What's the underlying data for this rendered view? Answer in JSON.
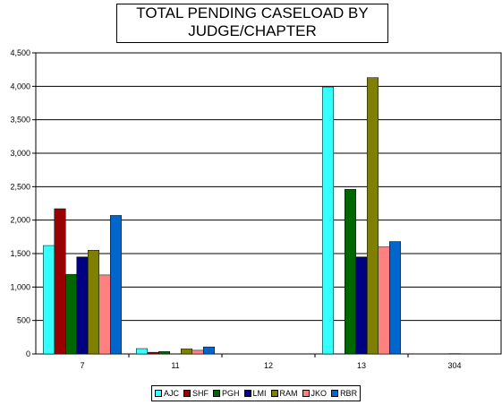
{
  "chart_data": {
    "type": "bar",
    "title_lines": [
      "TOTAL PENDING  CASELOAD BY",
      "JUDGE/CHAPTER"
    ],
    "categories": [
      "7",
      "11",
      "12",
      "13",
      "304"
    ],
    "ylim": [
      0,
      4500
    ],
    "yticks": [
      "0",
      "500",
      "1,000",
      "1,500",
      "2,000",
      "2,500",
      "3,000",
      "3,500",
      "4,000",
      "4,500"
    ],
    "ytick_values": [
      0,
      500,
      1000,
      1500,
      2000,
      2500,
      3000,
      3500,
      4000,
      4500
    ],
    "grid": true,
    "legend_position": "bottom",
    "series": [
      {
        "name": "AJC",
        "color": "#33ffff",
        "values": [
          1620,
          80,
          0,
          3990,
          0
        ]
      },
      {
        "name": "SHF",
        "color": "#990000",
        "values": [
          2170,
          25,
          0,
          0,
          0
        ]
      },
      {
        "name": "PGH",
        "color": "#006600",
        "values": [
          1190,
          35,
          0,
          2460,
          0
        ]
      },
      {
        "name": "LMI",
        "color": "#000080",
        "values": [
          1450,
          0,
          0,
          1450,
          5
        ]
      },
      {
        "name": "RAM",
        "color": "#808000",
        "values": [
          1550,
          75,
          0,
          4130,
          0
        ]
      },
      {
        "name": "JKO",
        "color": "#ff8080",
        "values": [
          1180,
          55,
          0,
          1600,
          0
        ]
      },
      {
        "name": "RBR",
        "color": "#0066cc",
        "values": [
          2070,
          105,
          0,
          1680,
          0
        ]
      }
    ]
  }
}
